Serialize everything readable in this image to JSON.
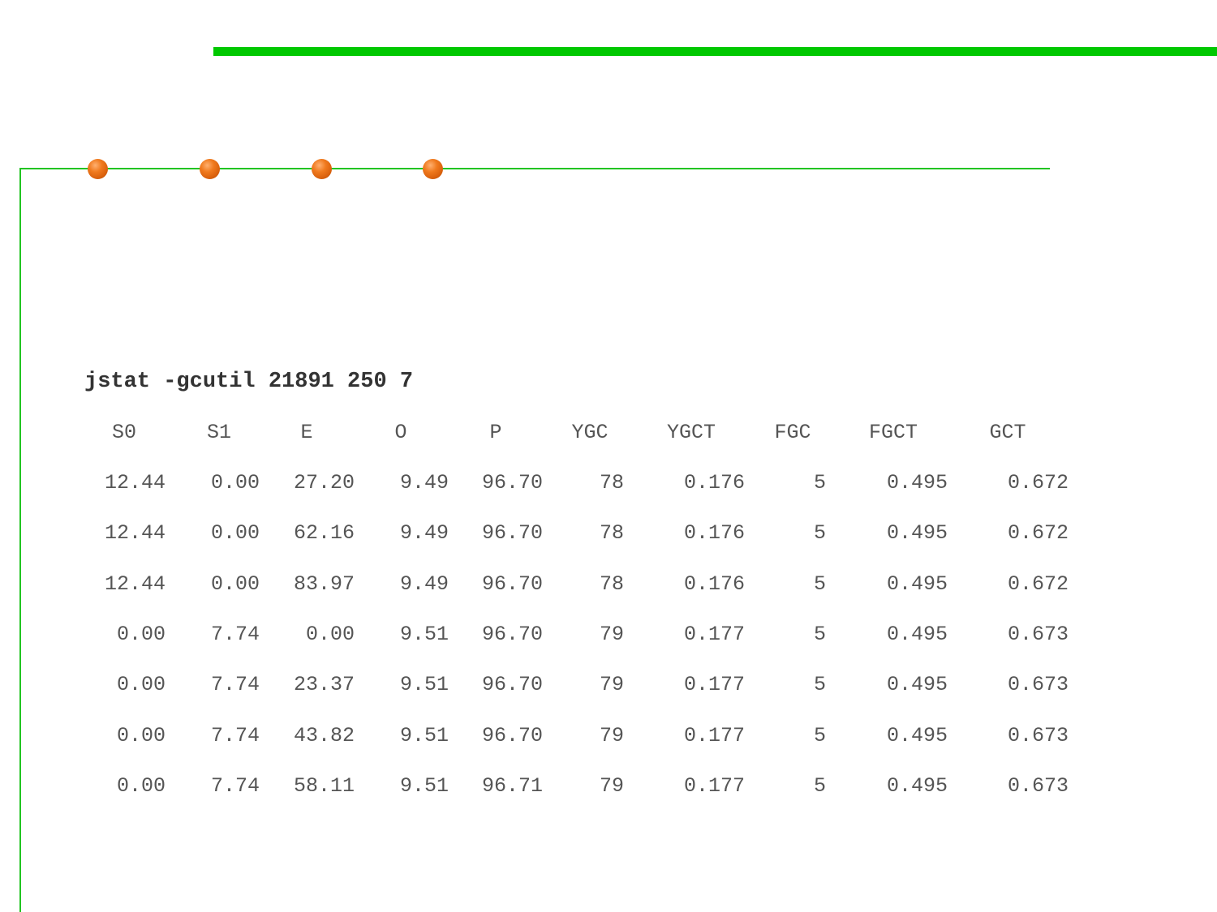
{
  "command": "jstat -gcutil 21891 250 7",
  "colors": {
    "accent_bar": "#00c800",
    "frame_line": "#22c422",
    "bullet": "#f07a1e",
    "text": "#555555"
  },
  "table": {
    "headers": [
      "S0",
      "S1",
      "E",
      "O",
      "P",
      "YGC",
      "YGCT",
      "FGC",
      "FGCT",
      "GCT"
    ],
    "rows": [
      [
        "12.44",
        "0.00",
        "27.20",
        "9.49",
        "96.70",
        "78",
        "0.176",
        "5",
        "0.495",
        "0.672"
      ],
      [
        "12.44",
        "0.00",
        "62.16",
        "9.49",
        "96.70",
        "78",
        "0.176",
        "5",
        "0.495",
        "0.672"
      ],
      [
        "12.44",
        "0.00",
        "83.97",
        "9.49",
        "96.70",
        "78",
        "0.176",
        "5",
        "0.495",
        "0.672"
      ],
      [
        "0.00",
        "7.74",
        "0.00",
        "9.51",
        "96.70",
        "79",
        "0.177",
        "5",
        "0.495",
        "0.673"
      ],
      [
        "0.00",
        "7.74",
        "23.37",
        "9.51",
        "96.70",
        "79",
        "0.177",
        "5",
        "0.495",
        "0.673"
      ],
      [
        "0.00",
        "7.74",
        "43.82",
        "9.51",
        "96.70",
        "79",
        "0.177",
        "5",
        "0.495",
        "0.673"
      ],
      [
        "0.00",
        "7.74",
        "58.11",
        "9.51",
        "96.71",
        "79",
        "0.177",
        "5",
        "0.495",
        "0.673"
      ]
    ]
  }
}
